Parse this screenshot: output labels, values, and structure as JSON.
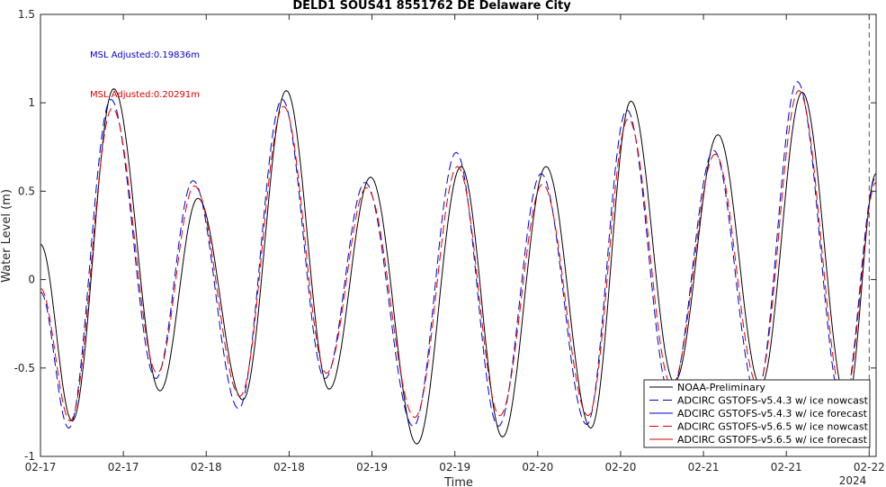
{
  "chart_data": {
    "type": "line",
    "title": "DELD1 SOUS41 8551762 DE Delaware City",
    "xlabel": "Time",
    "ylabel": "Water Level (m)",
    "x_unit": "hours since 2024-02-17 00:00",
    "xlim": [
      0,
      121
    ],
    "ylim": [
      -1,
      1.5
    ],
    "xticks": [
      0,
      12,
      24,
      36,
      48,
      60,
      72,
      84,
      96,
      108,
      120
    ],
    "xtick_labels": [
      "02-17",
      "02-17",
      "02-18",
      "02-18",
      "02-19",
      "02-19",
      "02-20",
      "02-20",
      "02-21",
      "02-21",
      "02-22"
    ],
    "x_secondary_label": "2024",
    "yticks": [
      -1,
      -0.5,
      0,
      0.5,
      1,
      1.5
    ],
    "ytick_labels": [
      "-1",
      "-0.5",
      "0",
      "0.5",
      "1",
      "1.5"
    ],
    "grid": false,
    "legend_position": "bottom-right",
    "vertical_marker_x": 120,
    "annotations": [
      {
        "text": "MSL Adjusted:0.19836m",
        "color": "#0000cc"
      },
      {
        "text": "MSL Adjusted:0.20291m",
        "color": "#dd0000"
      }
    ],
    "series": [
      {
        "name": "NOAA-Preliminary",
        "color": "#000000",
        "dash": "solid",
        "x": [
          0,
          4.6,
          10.6,
          17.3,
          22.8,
          29.3,
          35.6,
          41.8,
          47.8,
          54.5,
          60.9,
          66.9,
          73.2,
          79.7,
          85.5,
          91.8,
          98.1,
          104.3,
          110.3,
          116.8,
          121
        ],
        "y": [
          0.2,
          -0.8,
          1.08,
          -0.63,
          0.46,
          -0.68,
          1.07,
          -0.62,
          0.58,
          -0.93,
          0.64,
          -0.89,
          0.64,
          -0.84,
          1.01,
          -0.58,
          0.82,
          -0.6,
          1.06,
          -0.7,
          0.6
        ]
      },
      {
        "name": "ADCIRC GSTOFS-v5.4.3 w/ ice nowcast",
        "color": "#0000cc",
        "dash": "10,5",
        "x": [
          0,
          4.1,
          10.2,
          16.7,
          22.1,
          28.7,
          35.0,
          41.2,
          47.0,
          54.0,
          60.2,
          66.3,
          72.5,
          79.1,
          84.9,
          91.2,
          97.5,
          103.7,
          109.6,
          116.2,
          121
        ],
        "y": [
          -0.07,
          -0.84,
          1.02,
          -0.56,
          0.56,
          -0.73,
          1.02,
          -0.56,
          0.55,
          -0.83,
          0.72,
          -0.83,
          0.6,
          -0.82,
          0.96,
          -0.65,
          0.73,
          -0.65,
          1.12,
          -0.72,
          0.58
        ]
      },
      {
        "name": "ADCIRC GSTOFS-v5.4.3 w/ ice forecast",
        "color": "#0000cc",
        "dash": "solid",
        "x": [],
        "y": []
      },
      {
        "name": "ADCIRC GSTOFS-v5.6.5 w/ ice nowcast",
        "color": "#dd0000",
        "dash": "10,5",
        "x": [
          0,
          4.3,
          10.4,
          16.9,
          22.3,
          28.9,
          35.2,
          41.4,
          47.2,
          54.2,
          60.4,
          66.5,
          72.7,
          79.3,
          85.1,
          91.4,
          97.7,
          103.9,
          109.8,
          116.4,
          121
        ],
        "y": [
          -0.05,
          -0.8,
          0.97,
          -0.53,
          0.53,
          -0.66,
          0.98,
          -0.53,
          0.52,
          -0.78,
          0.64,
          -0.77,
          0.54,
          -0.77,
          0.91,
          -0.6,
          0.71,
          -0.6,
          1.07,
          -0.69,
          0.55
        ]
      },
      {
        "name": "ADCIRC GSTOFS-v5.6.5 w/ ice forecast",
        "color": "#dd0000",
        "dash": "solid",
        "x": [],
        "y": []
      }
    ]
  }
}
